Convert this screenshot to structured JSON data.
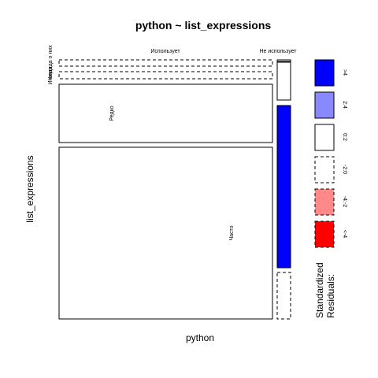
{
  "chart_data": {
    "type": "mosaic",
    "title": "python ~ list_expressions",
    "xlabel": "python",
    "ylabel": "list_expressions",
    "x_categories": [
      "Использует",
      "Не использует"
    ],
    "y_categories": [
      "Никогда о них",
      "Иногда",
      "Редко",
      "Часто"
    ],
    "cells": [
      {
        "x": "Использует",
        "y": "Никогда о них",
        "residual_class": "-2:0",
        "fill": "#ffffff",
        "dashed": true
      },
      {
        "x": "Использует",
        "y": "Иногда",
        "residual_class": "-2:0",
        "fill": "#ffffff",
        "dashed": true
      },
      {
        "x": "Использует",
        "y": "Редко",
        "residual_class": "0:2",
        "fill": "#ffffff",
        "dashed": false
      },
      {
        "x": "Использует",
        "y": "Часто",
        "residual_class": "0:2",
        "fill": "#ffffff",
        "dashed": false
      },
      {
        "x": "Не использует",
        "y": "Никогда о них",
        "residual_class": "0:2",
        "fill": "#ffffff",
        "dashed": false
      },
      {
        "x": "Не использует",
        "y": "Иногда",
        "residual_class": "0:2",
        "fill": "#ffffff",
        "dashed": false
      },
      {
        "x": "Не использует",
        "y": "Редко",
        "residual_class": ">4",
        "fill": "#0000ff",
        "dashed": false
      },
      {
        "x": "Не использует",
        "y": "Часто",
        "residual_class": "-2:0",
        "fill": "#ffffff",
        "dashed": true
      }
    ],
    "legend": {
      "title": "Standardized\nResiduals:",
      "position": "right",
      "items": [
        {
          "label": ">4",
          "fill": "#0000ff",
          "dashed": false
        },
        {
          "label": "2:4",
          "fill": "#8888ff",
          "dashed": false
        },
        {
          "label": "0:2",
          "fill": "#ffffff",
          "dashed": false
        },
        {
          "label": "-2:0",
          "fill": "#ffffff",
          "dashed": true
        },
        {
          "label": "-4:-2",
          "fill": "#ff8888",
          "dashed": true
        },
        {
          "label": "<-4",
          "fill": "#ff0000",
          "dashed": true
        }
      ]
    }
  }
}
